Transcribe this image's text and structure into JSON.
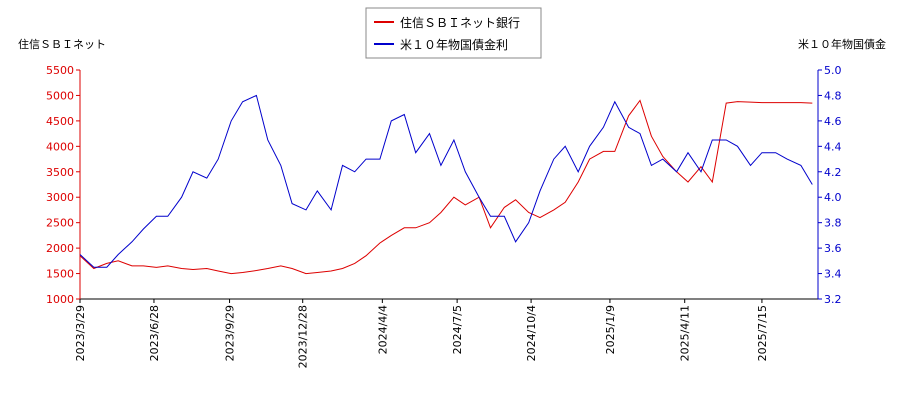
{
  "chart_data": {
    "type": "line",
    "y_label": "住信ＳＢＩネット",
    "y2_label": "米１０年物国債金",
    "x": [
      "2023/3/29",
      "2023/4/15",
      "2023/5/1",
      "2023/5/15",
      "2023/6/1",
      "2023/6/15",
      "2023/7/1",
      "2023/7/15",
      "2023/8/1",
      "2023/8/15",
      "2023/9/1",
      "2023/9/15",
      "2023/10/1",
      "2023/10/15",
      "2023/11/1",
      "2023/11/15",
      "2023/12/1",
      "2023/12/15",
      "2024/1/1",
      "2024/1/15",
      "2024/2/1",
      "2024/2/15",
      "2024/3/1",
      "2024/3/15",
      "2024/4/1",
      "2024/4/15",
      "2024/5/1",
      "2024/5/15",
      "2024/6/1",
      "2024/6/15",
      "2024/7/1",
      "2024/7/15",
      "2024/8/1",
      "2024/8/15",
      "2024/9/1",
      "2024/9/15",
      "2024/10/1",
      "2024/10/15",
      "2024/11/1",
      "2024/11/15",
      "2024/12/1",
      "2024/12/15",
      "2025/1/1",
      "2025/1/15",
      "2025/2/1",
      "2025/2/15",
      "2025/3/1",
      "2025/3/15",
      "2025/4/1",
      "2025/4/15",
      "2025/5/1",
      "2025/5/15",
      "2025/6/1",
      "2025/6/15",
      "2025/7/1",
      "2025/7/15",
      "2025/8/1",
      "2025/8/15",
      "2025/9/1",
      "2025/9/15"
    ],
    "series": [
      {
        "name": "住信ＳＢＩネット銀行",
        "color": "#dd0000",
        "values": [
          1850,
          1600,
          1700,
          1750,
          1650,
          1650,
          1620,
          1650,
          1600,
          1580,
          1600,
          1550,
          1500,
          1520,
          1560,
          1600,
          1650,
          1600,
          1500,
          1520,
          1550,
          1600,
          1700,
          1850,
          2100,
          2250,
          2400,
          2400,
          2500,
          2700,
          3000,
          2850,
          3000,
          2400,
          2800,
          2950,
          2700,
          2600,
          2750,
          2900,
          3300,
          3750,
          3900,
          3900,
          4600,
          4900,
          4200,
          3800,
          3500,
          3300,
          3600,
          3300,
          4850,
          4880,
          4870,
          4860,
          4860,
          4860,
          4860,
          4850
        ]
      },
      {
        "name": "米１０年物国債金利",
        "color": "#0000cc",
        "axis": "y2",
        "values": [
          3.55,
          3.45,
          3.45,
          3.55,
          3.65,
          3.75,
          3.85,
          3.85,
          4.0,
          4.2,
          4.15,
          4.3,
          4.6,
          4.75,
          4.8,
          4.45,
          4.25,
          3.95,
          3.9,
          4.05,
          3.9,
          4.25,
          4.2,
          4.3,
          4.3,
          4.6,
          4.65,
          4.35,
          4.5,
          4.25,
          4.45,
          4.2,
          4.0,
          3.85,
          3.85,
          3.65,
          3.8,
          4.05,
          4.3,
          4.4,
          4.2,
          4.4,
          4.55,
          4.75,
          4.55,
          4.5,
          4.25,
          4.3,
          4.2,
          4.35,
          4.2,
          4.45,
          4.45,
          4.4,
          4.25,
          4.35,
          4.35,
          4.3,
          4.25,
          4.1
        ]
      }
    ],
    "xlim": [
      "2023/3/29",
      "2025/9/22"
    ],
    "xticks": [
      "2023/3/29",
      "2023/6/28",
      "2023/9/29",
      "2023/12/28",
      "2024/4/4",
      "2024/7/5",
      "2024/10/4",
      "2025/1/9",
      "2025/4/11",
      "2025/7/15"
    ],
    "ylim": [
      1000,
      5500
    ],
    "yticks": [
      1000,
      1500,
      2000,
      2500,
      3000,
      3500,
      4000,
      4500,
      5000,
      5500
    ],
    "y2lim": [
      3.2,
      5.0
    ],
    "y2ticks": [
      3.2,
      3.4,
      3.6,
      3.8,
      {
        "value": 4.0,
        "label": "4.0"
      },
      4.2,
      4.4,
      4.6,
      4.8,
      {
        "value": 5.0,
        "label": "5.0"
      }
    ],
    "legend": "top"
  }
}
